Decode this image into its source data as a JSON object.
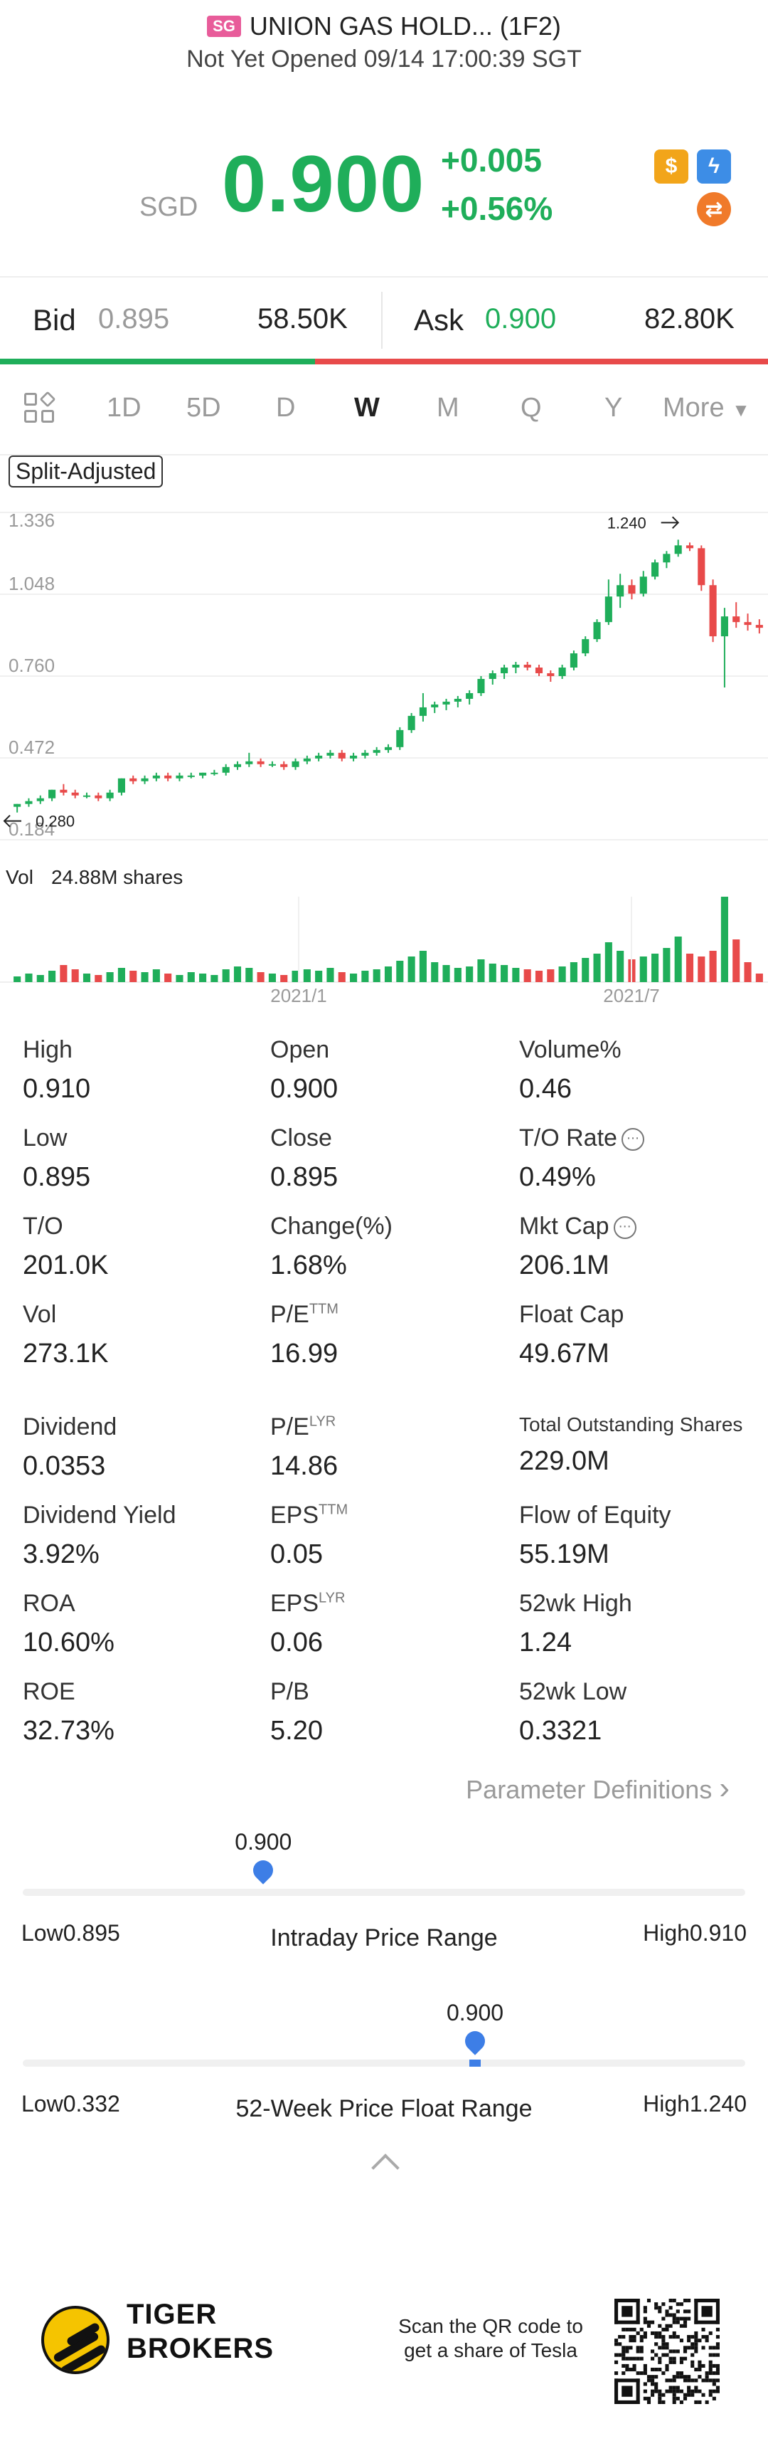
{
  "header": {
    "market_badge": "SG",
    "title": "UNION GAS HOLD... (1F2)",
    "status": "Not Yet Opened 09/14 17:00:39 SGT"
  },
  "price": {
    "currency": "SGD",
    "last": "0.900",
    "change_abs": "+0.005",
    "change_pct": "+0.56%"
  },
  "icons": {
    "dollar": "dollar-icon",
    "bolt": "bolt-icon",
    "swap": "swap-icon"
  },
  "bid_ask": {
    "bid_label": "Bid",
    "bid_price": "0.895",
    "bid_volume": "58.50K",
    "ask_label": "Ask",
    "ask_price": "0.900",
    "ask_volume": "82.80K",
    "bid_share": 0.41
  },
  "tabs": [
    "1D",
    "5D",
    "D",
    "W",
    "M",
    "Q",
    "Y",
    "More"
  ],
  "active_tab": "W",
  "chart": {
    "split_label": "Split-Adjusted",
    "y_ticks": [
      "1.336",
      "1.048",
      "0.760",
      "0.472",
      "0.184"
    ],
    "high_marker": "1.240",
    "low_marker": "0.280",
    "vol_label": "Vol",
    "vol_value": "24.88M shares",
    "x_labels": [
      "2021/1",
      "2021/7"
    ]
  },
  "chart_data": {
    "type": "candlestick",
    "title": "",
    "ylim": [
      0.184,
      1.336
    ],
    "colors": {
      "up": "#1fae5a",
      "down": "#e84a4a"
    },
    "candles": [
      [
        0.3,
        0.31,
        0.28,
        0.31
      ],
      [
        0.31,
        0.33,
        0.3,
        0.32
      ],
      [
        0.32,
        0.34,
        0.31,
        0.33
      ],
      [
        0.33,
        0.36,
        0.32,
        0.36
      ],
      [
        0.36,
        0.38,
        0.34,
        0.35
      ],
      [
        0.35,
        0.36,
        0.33,
        0.34
      ],
      [
        0.34,
        0.35,
        0.33,
        0.34
      ],
      [
        0.34,
        0.35,
        0.32,
        0.33
      ],
      [
        0.33,
        0.36,
        0.32,
        0.35
      ],
      [
        0.35,
        0.4,
        0.34,
        0.4
      ],
      [
        0.4,
        0.41,
        0.38,
        0.39
      ],
      [
        0.39,
        0.41,
        0.38,
        0.4
      ],
      [
        0.4,
        0.42,
        0.39,
        0.41
      ],
      [
        0.41,
        0.42,
        0.39,
        0.4
      ],
      [
        0.4,
        0.42,
        0.39,
        0.41
      ],
      [
        0.41,
        0.42,
        0.4,
        0.41
      ],
      [
        0.41,
        0.42,
        0.4,
        0.42
      ],
      [
        0.42,
        0.43,
        0.41,
        0.42
      ],
      [
        0.42,
        0.45,
        0.41,
        0.44
      ],
      [
        0.44,
        0.46,
        0.43,
        0.45
      ],
      [
        0.45,
        0.49,
        0.44,
        0.46
      ],
      [
        0.46,
        0.47,
        0.44,
        0.45
      ],
      [
        0.45,
        0.46,
        0.44,
        0.45
      ],
      [
        0.45,
        0.46,
        0.43,
        0.44
      ],
      [
        0.44,
        0.47,
        0.43,
        0.46
      ],
      [
        0.46,
        0.48,
        0.45,
        0.47
      ],
      [
        0.47,
        0.49,
        0.46,
        0.48
      ],
      [
        0.48,
        0.5,
        0.47,
        0.49
      ],
      [
        0.49,
        0.5,
        0.46,
        0.47
      ],
      [
        0.47,
        0.49,
        0.46,
        0.48
      ],
      [
        0.48,
        0.5,
        0.47,
        0.49
      ],
      [
        0.49,
        0.51,
        0.48,
        0.5
      ],
      [
        0.5,
        0.52,
        0.49,
        0.51
      ],
      [
        0.51,
        0.58,
        0.5,
        0.57
      ],
      [
        0.57,
        0.63,
        0.56,
        0.62
      ],
      [
        0.62,
        0.7,
        0.6,
        0.65
      ],
      [
        0.65,
        0.67,
        0.63,
        0.66
      ],
      [
        0.66,
        0.68,
        0.64,
        0.67
      ],
      [
        0.67,
        0.69,
        0.65,
        0.68
      ],
      [
        0.68,
        0.71,
        0.66,
        0.7
      ],
      [
        0.7,
        0.76,
        0.69,
        0.75
      ],
      [
        0.75,
        0.78,
        0.73,
        0.77
      ],
      [
        0.77,
        0.8,
        0.75,
        0.79
      ],
      [
        0.79,
        0.81,
        0.77,
        0.8
      ],
      [
        0.8,
        0.81,
        0.78,
        0.79
      ],
      [
        0.79,
        0.8,
        0.76,
        0.77
      ],
      [
        0.77,
        0.78,
        0.74,
        0.76
      ],
      [
        0.76,
        0.8,
        0.75,
        0.79
      ],
      [
        0.79,
        0.85,
        0.78,
        0.84
      ],
      [
        0.84,
        0.9,
        0.83,
        0.89
      ],
      [
        0.89,
        0.96,
        0.88,
        0.95
      ],
      [
        0.95,
        1.1,
        0.94,
        1.04
      ],
      [
        1.04,
        1.12,
        1.0,
        1.08
      ],
      [
        1.08,
        1.1,
        1.03,
        1.05
      ],
      [
        1.05,
        1.13,
        1.04,
        1.11
      ],
      [
        1.11,
        1.17,
        1.1,
        1.16
      ],
      [
        1.16,
        1.2,
        1.14,
        1.19
      ],
      [
        1.19,
        1.24,
        1.18,
        1.22
      ],
      [
        1.22,
        1.23,
        1.2,
        1.21
      ],
      [
        1.21,
        1.22,
        1.06,
        1.08
      ],
      [
        1.08,
        1.1,
        0.88,
        0.9
      ],
      [
        0.9,
        1.0,
        0.72,
        0.97
      ],
      [
        0.97,
        1.02,
        0.93,
        0.95
      ],
      [
        0.95,
        0.98,
        0.92,
        0.94
      ],
      [
        0.94,
        0.96,
        0.91,
        0.93
      ]
    ],
    "volumes": [
      4,
      6,
      5,
      8,
      12,
      9,
      6,
      5,
      7,
      10,
      8,
      7,
      9,
      6,
      5,
      7,
      6,
      5,
      9,
      11,
      10,
      7,
      6,
      5,
      8,
      9,
      8,
      10,
      7,
      6,
      8,
      9,
      11,
      15,
      18,
      22,
      14,
      12,
      10,
      11,
      16,
      13,
      12,
      10,
      9,
      8,
      9,
      11,
      14,
      17,
      20,
      28,
      22,
      16,
      18,
      20,
      24,
      32,
      20,
      18,
      22,
      60,
      30,
      14,
      6
    ]
  },
  "stats": {
    "high_label": "High",
    "high": "0.910",
    "open_label": "Open",
    "open": "0.900",
    "volpct_label": "Volume%",
    "volpct": "0.46",
    "low_label": "Low",
    "low": "0.895",
    "close_label": "Close",
    "close": "0.895",
    "torate_label": "T/O Rate",
    "torate": "0.49%",
    "to_label": "T/O",
    "to": "201.0K",
    "chg_label": "Change(%)",
    "chg": "1.68%",
    "mktcap_label": "Mkt Cap",
    "mktcap": "206.1M",
    "vol_label": "Vol",
    "vol": "273.1K",
    "pe_label": "P/E",
    "pe_sup": "TTM",
    "pe": "16.99",
    "floatcap_label": "Float Cap",
    "floatcap": "49.67M",
    "div_label": "Dividend",
    "div": "0.0353",
    "pelyr_label": "P/E",
    "pelyr_sup": "LYR",
    "pelyr": "14.86",
    "tos_label": "Total Outstanding Shares",
    "tos": "229.0M",
    "divy_label": "Dividend Yield",
    "divy": "3.92%",
    "eps_label": "EPS",
    "eps_sup": "TTM",
    "eps": "0.05",
    "foe_label": "Flow of Equity",
    "foe": "55.19M",
    "roa_label": "ROA",
    "roa": "10.60%",
    "epslyr_label": "EPS",
    "epslyr_sup": "LYR",
    "epslyr": "0.06",
    "wkh_label": "52wk High",
    "wkh": "1.24",
    "roe_label": "ROE",
    "roe": "32.73%",
    "pb_label": "P/B",
    "pb": "5.20",
    "wkl_label": "52wk Low",
    "wkl": "0.3321",
    "info_glyph": "⋯",
    "param_def": "Parameter Definitions",
    "param_chevron": "›"
  },
  "intraday_range": {
    "title": "Intraday Price Range",
    "low": "Low0.895",
    "high": "High0.910",
    "current": "0.900",
    "position": 0.333
  },
  "week52_range": {
    "title": "52-Week Price Float Range",
    "low": "Low0.332",
    "high": "High1.240",
    "current": "0.900",
    "position": 0.626
  },
  "footer": {
    "brand_line1": "TIGER",
    "brand_line2": "BROKERS",
    "qr_text_line1": "Scan the QR code to",
    "qr_text_line2": "get a share of Tesla"
  }
}
